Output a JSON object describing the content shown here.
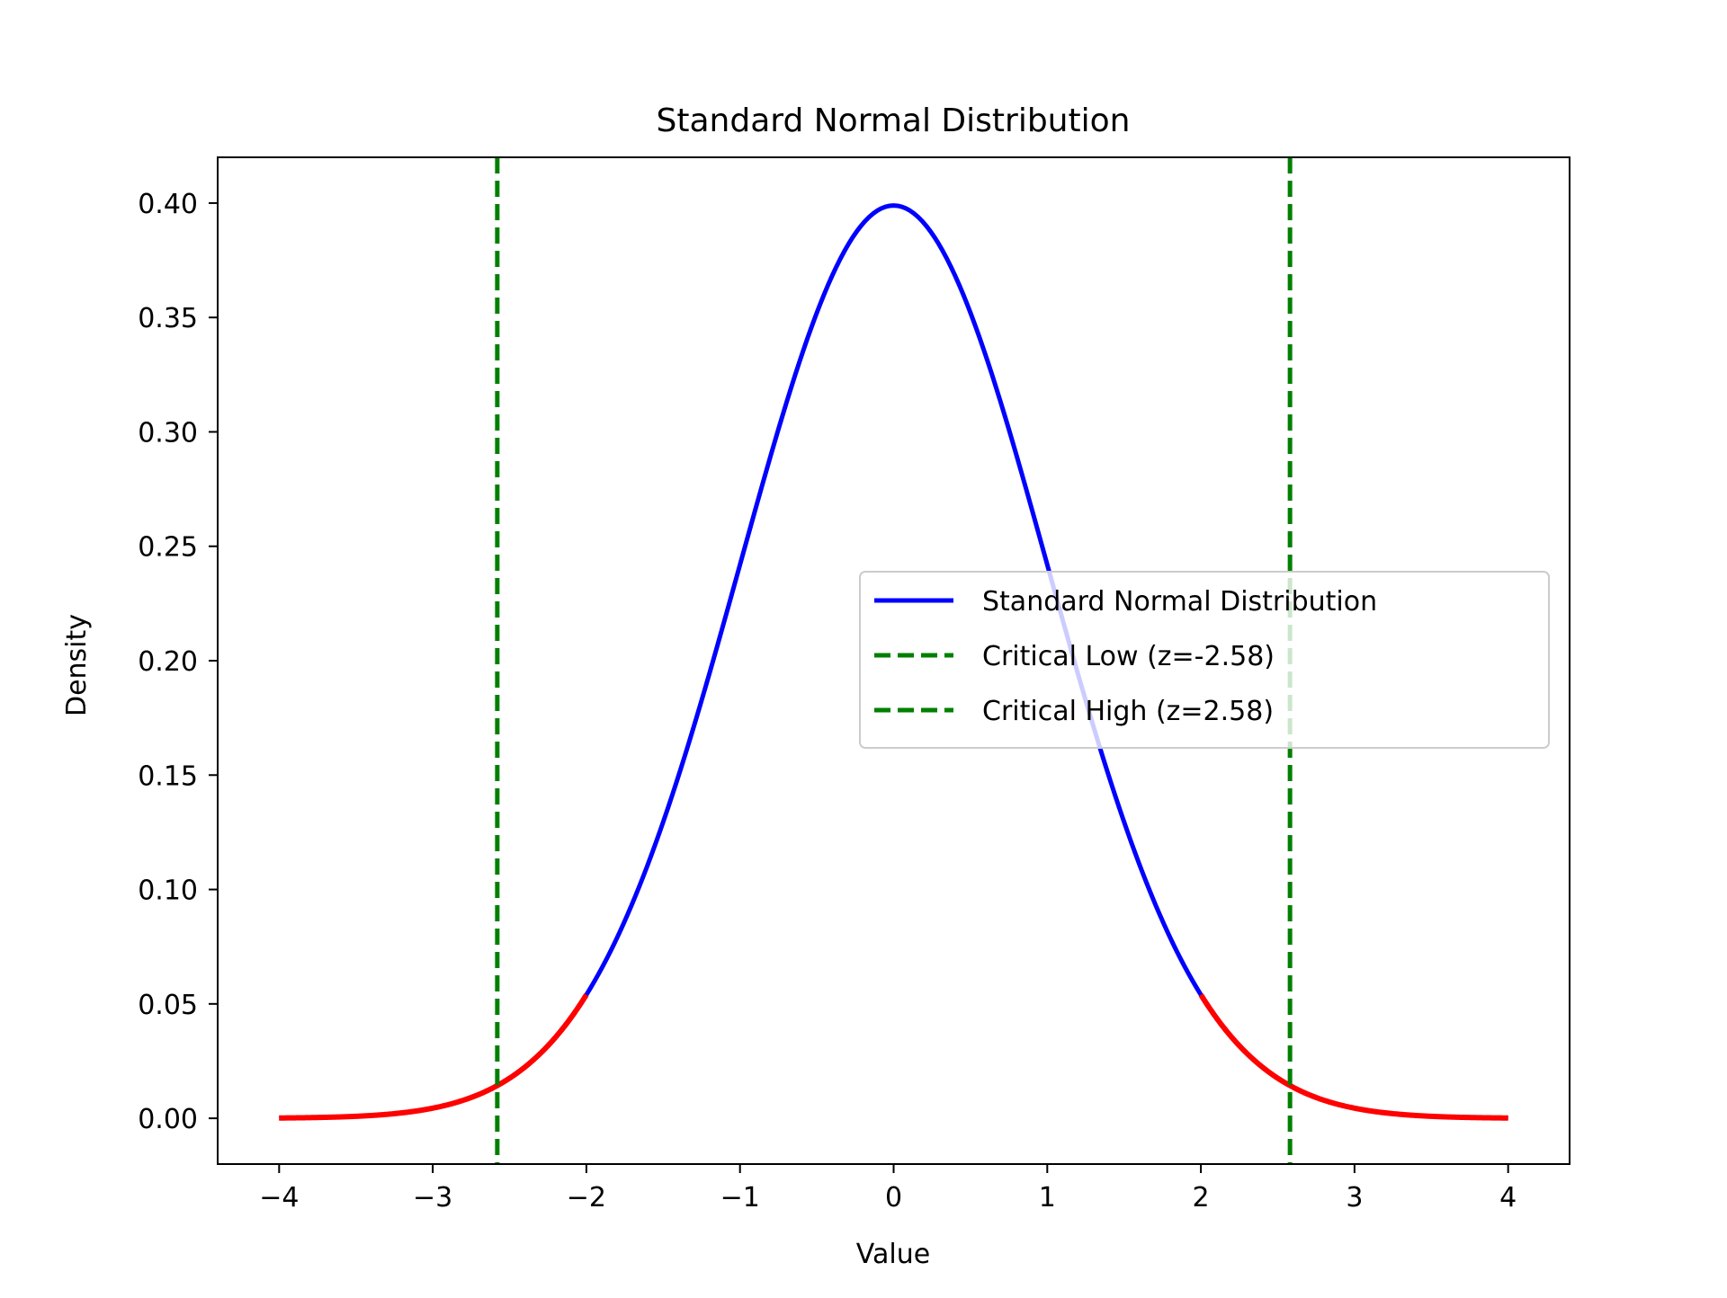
{
  "chart_data": {
    "type": "line",
    "title": "Standard Normal Distribution",
    "xlabel": "Value",
    "ylabel": "Density",
    "xlim": [
      -4.4,
      4.4
    ],
    "ylim": [
      -0.02,
      0.42
    ],
    "x_ticks": [
      -4,
      -3,
      -2,
      -1,
      0,
      1,
      2,
      3,
      4
    ],
    "x_tick_labels": [
      "−4",
      "−3",
      "−2",
      "−1",
      "0",
      "1",
      "2",
      "3",
      "4"
    ],
    "y_ticks": [
      0.0,
      0.05,
      0.1,
      0.15,
      0.2,
      0.25,
      0.3,
      0.35,
      0.4
    ],
    "y_tick_labels": [
      "0.00",
      "0.05",
      "0.10",
      "0.15",
      "0.20",
      "0.25",
      "0.30",
      "0.35",
      "0.40"
    ],
    "grid": false,
    "legend_position": "center-right",
    "series": [
      {
        "name": "Standard Normal Distribution",
        "color": "#0000ff",
        "style": "solid",
        "x": [
          -4.0,
          -3.5,
          -3.0,
          -2.58,
          -2.0,
          -1.5,
          -1.0,
          -0.5,
          0.0,
          0.5,
          1.0,
          1.5,
          2.0,
          2.58,
          3.0,
          3.5,
          4.0
        ],
        "y": [
          0.0001,
          0.0009,
          0.0044,
          0.0143,
          0.054,
          0.1295,
          0.242,
          0.3521,
          0.3989,
          0.3521,
          0.242,
          0.1295,
          0.054,
          0.0143,
          0.0044,
          0.0009,
          0.0001
        ]
      },
      {
        "name": "Critical Low (z=-2.58)",
        "color": "#008000",
        "style": "dashed",
        "type": "vline",
        "x": -2.58
      },
      {
        "name": "Critical High (z=2.58)",
        "color": "#008000",
        "style": "dashed",
        "type": "vline",
        "x": 2.58
      }
    ],
    "tail_highlight": {
      "color": "#ff0000",
      "ranges": [
        [
          -4.0,
          -2.0
        ],
        [
          2.0,
          4.0
        ]
      ]
    }
  }
}
